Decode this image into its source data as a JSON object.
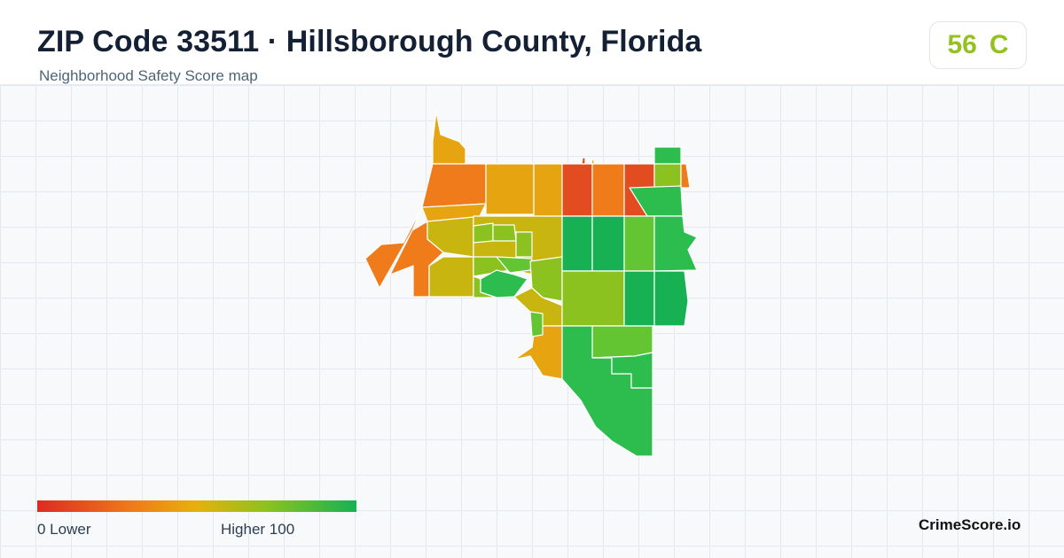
{
  "header": {
    "title": "ZIP Code 33511 · Hillsborough County, Florida",
    "subtitle": "Neighborhood Safety Score map"
  },
  "score": {
    "value": "56",
    "grade": "C",
    "color": "#95c11f"
  },
  "legend": {
    "low_label": "0  Lower",
    "high_label": "Higher  100",
    "colors": [
      "#dc2b22",
      "#f07b1a",
      "#e6b10c",
      "#8cc21f",
      "#17b153"
    ]
  },
  "brand": "CrimeScore.io",
  "map": {
    "region_colors": {
      "red": "#e34b20",
      "orange": "#f07b1a",
      "amber": "#e6a510",
      "yellow": "#c9b50f",
      "lime": "#8cc21f",
      "light_green": "#63c532",
      "green": "#2dbd4f",
      "dark_green": "#17b153"
    }
  }
}
